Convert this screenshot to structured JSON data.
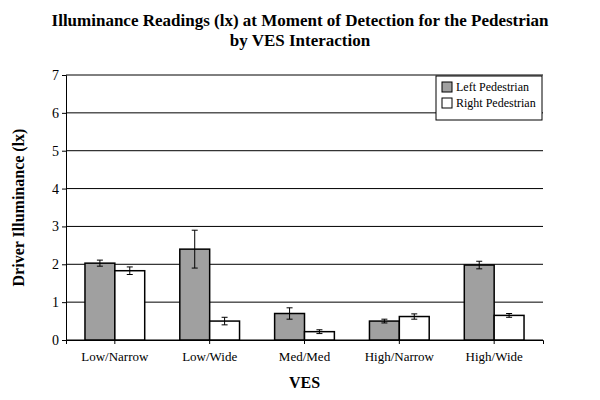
{
  "chart_data": {
    "type": "bar",
    "title": "Illuminance Readings (lx) at Moment of Detection for the Pedestrian by VES Interaction",
    "x_label": "VES",
    "y_label": "Driver Illuminance (lx)",
    "categories": [
      "Low/Narrow",
      "Low/Wide",
      "Med/Med",
      "High/Narrow",
      "High/Wide"
    ],
    "series": [
      {
        "name": "Left Pedestrian",
        "color": "#a0a0a0",
        "values": [
          2.03,
          2.4,
          0.7,
          0.5,
          1.98
        ],
        "errors": [
          0.08,
          0.5,
          0.15,
          0.05,
          0.1
        ]
      },
      {
        "name": "Right Pedestrian",
        "color": "#ffffff",
        "values": [
          1.83,
          0.5,
          0.22,
          0.62,
          0.65
        ],
        "errors": [
          0.1,
          0.1,
          0.05,
          0.07,
          0.05
        ]
      }
    ],
    "ylim": [
      0,
      7
    ],
    "yticks": [
      0,
      1,
      2,
      3,
      4,
      5,
      6,
      7
    ],
    "grid": true,
    "legend": "top-right"
  }
}
